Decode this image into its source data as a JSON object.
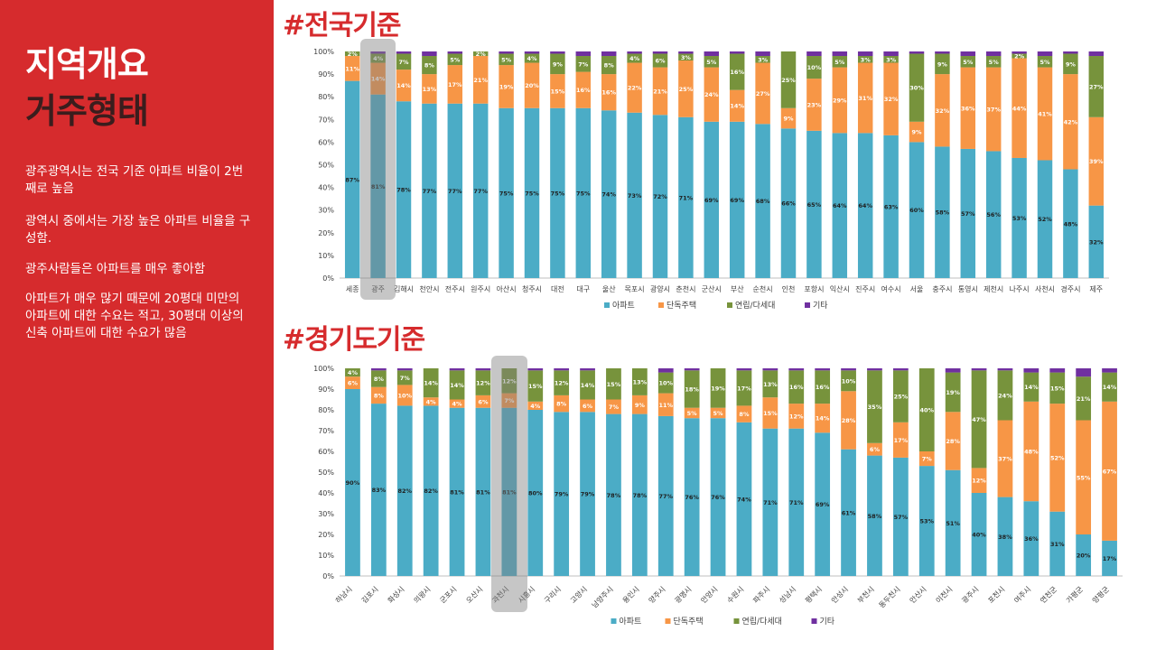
{
  "sidebar": {
    "title_line1": "지역개요",
    "title_line2": "거주형태",
    "paragraphs": [
      "광주광역시는 전국 기준 아파트 비율이 2번째로 높음",
      "광역시 중에서는 가장 높은 아파트 비율을 구성함.",
      "광주사람들은 아파트를 매우 좋아함",
      "아파트가 매우 많기 때문에 20평대 미만의 아파트에 대한 수요는 적고, 30평대 이상의 신축 아파트에 대한 수요가 많음"
    ]
  },
  "colors": {
    "sidebar_bg": "#d62b2d",
    "accent": "#d62b2d",
    "apartment": "#4bacc6",
    "detached": "#f79646",
    "rowhouse": "#77933c",
    "other": "#7030a0",
    "highlight": "#808080"
  },
  "chart_data": [
    {
      "type": "bar",
      "stacked": true,
      "title": "#전국기준",
      "ylim": [
        0,
        100
      ],
      "y_ticks": [
        "0%",
        "10%",
        "20%",
        "30%",
        "40%",
        "50%",
        "60%",
        "70%",
        "80%",
        "90%",
        "100%"
      ],
      "grid": false,
      "legend": "bottom",
      "highlighted_category": "광주",
      "categories": [
        "세종",
        "광주",
        "김해시",
        "천안시",
        "전주시",
        "원주시",
        "아산시",
        "청주시",
        "대전",
        "대구",
        "울산",
        "목포시",
        "광양시",
        "춘천시",
        "군산시",
        "부산",
        "순천시",
        "인천",
        "포항시",
        "익산시",
        "진주시",
        "여수시",
        "서울",
        "충주시",
        "통영시",
        "제천시",
        "나주시",
        "사천시",
        "경주시",
        "제주"
      ],
      "series": [
        {
          "name": "아파트",
          "values": [
            87,
            81,
            78,
            77,
            77,
            77,
            75,
            75,
            75,
            75,
            74,
            73,
            72,
            71,
            69,
            69,
            68,
            66,
            65,
            64,
            64,
            63,
            60,
            58,
            57,
            56,
            53,
            52,
            48,
            32
          ],
          "labels": [
            "87%",
            "81%",
            "78%",
            "77%",
            "77%",
            "77%",
            "75%",
            "75%",
            "75%",
            "75%",
            "74%",
            "73%",
            "72%",
            "71%",
            "69%",
            "69%",
            "68%",
            "66%",
            "65%",
            "64%",
            "64%",
            "63%",
            "60%",
            "58%",
            "57%",
            "56%",
            "53%",
            "52%",
            "48%",
            "32%"
          ]
        },
        {
          "name": "단독주택",
          "values": [
            11,
            14,
            14,
            13,
            17,
            21,
            19,
            20,
            15,
            16,
            16,
            22,
            21,
            25,
            24,
            14,
            27,
            9,
            23,
            29,
            31,
            32,
            9,
            32,
            36,
            37,
            44,
            41,
            42,
            39
          ],
          "labels": [
            "11%",
            "14%",
            "14%",
            "13%",
            "17%",
            "21%",
            "19%",
            "20%",
            "15%",
            "16%",
            "16%",
            "22%",
            "21%",
            "25%",
            "24%",
            "14%",
            "27%",
            "9%",
            "23%",
            "29%",
            "31%",
            "32%",
            "9%",
            "32%",
            "36%",
            "37%",
            "44%",
            "41%",
            "42%",
            "39%"
          ]
        },
        {
          "name": "연립/다세대",
          "values": [
            2,
            4,
            7,
            8,
            5,
            2,
            5,
            4,
            9,
            7,
            8,
            4,
            6,
            3,
            5,
            16,
            3,
            25,
            10,
            5,
            3,
            3,
            30,
            9,
            5,
            5,
            2,
            5,
            9,
            27
          ],
          "labels": [
            "2%",
            "4%",
            "7%",
            "8%",
            "5%",
            "2%",
            "5%",
            "4%",
            "9%",
            "7%",
            "8%",
            "4%",
            "6%",
            "3%",
            "5%",
            "16%",
            "3%",
            "25%",
            "10%",
            "5%",
            "3%",
            "3%",
            "30%",
            "9%",
            "5%",
            "5%",
            "2%",
            "5%",
            "9%",
            "27%"
          ]
        },
        {
          "name": "기타",
          "values": [
            0,
            1,
            1,
            2,
            1,
            0,
            1,
            1,
            1,
            2,
            2,
            1,
            1,
            1,
            2,
            1,
            2,
            0,
            2,
            2,
            2,
            2,
            1,
            1,
            2,
            2,
            1,
            2,
            1,
            2
          ]
        }
      ]
    },
    {
      "type": "bar",
      "stacked": true,
      "title": "#경기도기준",
      "ylim": [
        0,
        100
      ],
      "y_ticks": [
        "0%",
        "10%",
        "20%",
        "30%",
        "40%",
        "50%",
        "60%",
        "70%",
        "80%",
        "90%",
        "100%"
      ],
      "grid": false,
      "legend": "bottom",
      "highlighted_category": "과천시",
      "categories": [
        "하남시",
        "김포시",
        "화성시",
        "의왕시",
        "군포시",
        "오산시",
        "과천시",
        "시흥시",
        "구리시",
        "고양시",
        "남양주시",
        "용인시",
        "양주시",
        "광명시",
        "안양시",
        "수원시",
        "파주시",
        "성남시",
        "평택시",
        "안성시",
        "부천시",
        "동두천시",
        "안산시",
        "이천시",
        "광주시",
        "포천시",
        "여주시",
        "연천군",
        "가평군",
        "양평군"
      ],
      "series": [
        {
          "name": "아파트",
          "values": [
            90,
            83,
            82,
            82,
            81,
            81,
            81,
            80,
            79,
            79,
            78,
            78,
            77,
            76,
            76,
            74,
            71,
            71,
            69,
            61,
            58,
            57,
            53,
            51,
            40,
            38,
            36,
            31,
            20,
            17
          ],
          "labels": [
            "90%",
            "83%",
            "82%",
            "82%",
            "81%",
            "81%",
            "81%",
            "80%",
            "79%",
            "79%",
            "78%",
            "78%",
            "77%",
            "76%",
            "76%",
            "74%",
            "71%",
            "71%",
            "69%",
            "61%",
            "58%",
            "57%",
            "53%",
            "51%",
            "40%",
            "38%",
            "36%",
            "31%",
            "20%",
            "17%"
          ]
        },
        {
          "name": "단독주택",
          "values": [
            6,
            8,
            10,
            4,
            4,
            6,
            7,
            4,
            8,
            6,
            7,
            9,
            11,
            5,
            5,
            8,
            15,
            12,
            14,
            28,
            6,
            17,
            7,
            28,
            12,
            37,
            48,
            52,
            55,
            67
          ],
          "labels": [
            "6%",
            "8%",
            "10%",
            "4%",
            "4%",
            "6%",
            "7%",
            "4%",
            "8%",
            "6%",
            "7%",
            "9%",
            "11%",
            "5%",
            "5%",
            "8%",
            "15%",
            "12%",
            "14%",
            "28%",
            "6%",
            "17%",
            "7%",
            "28%",
            "12%",
            "37%",
            "48%",
            "52%",
            "55%",
            "67%"
          ]
        },
        {
          "name": "연립/다세대",
          "values": [
            4,
            8,
            7,
            14,
            14,
            12,
            12,
            15,
            12,
            14,
            15,
            13,
            10,
            18,
            19,
            17,
            13,
            16,
            16,
            10,
            35,
            25,
            40,
            19,
            47,
            24,
            14,
            15,
            21,
            14
          ],
          "labels": [
            "4%",
            "8%",
            "7%",
            "14%",
            "14%",
            "12%",
            "12%",
            "15%",
            "12%",
            "14%",
            "15%",
            "13%",
            "10%",
            "18%",
            "19%",
            "17%",
            "13%",
            "16%",
            "16%",
            "10%",
            "35%",
            "25%",
            "40%",
            "19%",
            "47%",
            "24%",
            "14%",
            "15%",
            "21%",
            "14%"
          ]
        },
        {
          "name": "기타",
          "values": [
            0,
            1,
            1,
            0,
            1,
            1,
            0,
            1,
            1,
            1,
            0,
            0,
            2,
            1,
            0,
            1,
            1,
            1,
            1,
            1,
            1,
            1,
            0,
            2,
            1,
            1,
            2,
            2,
            4,
            2
          ]
        }
      ]
    }
  ]
}
